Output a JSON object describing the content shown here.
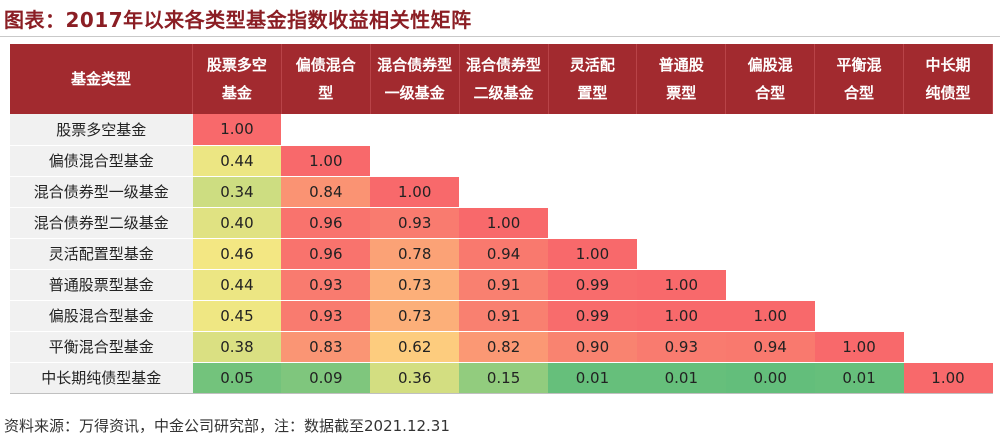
{
  "title": "图表：2017年以来各类型基金指数收益相关性矩阵",
  "corner_label": "基金类型",
  "columns": [
    [
      "股票多空",
      "基金"
    ],
    [
      "偏债混合",
      "型"
    ],
    [
      "混合债券型",
      "一级基金"
    ],
    [
      "混合债券型",
      "二级基金"
    ],
    [
      "灵活配",
      "置型"
    ],
    [
      "普通股",
      "票型"
    ],
    [
      "偏股混",
      "合型"
    ],
    [
      "平衡混",
      "合型"
    ],
    [
      "中长期",
      "纯债型"
    ]
  ],
  "rows": [
    {
      "label": "股票多空基金",
      "values": [
        "1.00"
      ]
    },
    {
      "label": "偏债混合型基金",
      "values": [
        "0.44",
        "1.00"
      ]
    },
    {
      "label": "混合债券型一级基金",
      "values": [
        "0.34",
        "0.84",
        "1.00"
      ]
    },
    {
      "label": "混合债券型二级基金",
      "values": [
        "0.40",
        "0.96",
        "0.93",
        "1.00"
      ]
    },
    {
      "label": "灵活配置型基金",
      "values": [
        "0.46",
        "0.96",
        "0.78",
        "0.94",
        "1.00"
      ]
    },
    {
      "label": "普通股票型基金",
      "values": [
        "0.44",
        "0.93",
        "0.73",
        "0.91",
        "0.99",
        "1.00"
      ]
    },
    {
      "label": "偏股混合型基金",
      "values": [
        "0.45",
        "0.93",
        "0.73",
        "0.91",
        "0.99",
        "1.00",
        "1.00"
      ]
    },
    {
      "label": "平衡混合型基金",
      "values": [
        "0.38",
        "0.83",
        "0.62",
        "0.82",
        "0.90",
        "0.93",
        "0.94",
        "1.00"
      ]
    },
    {
      "label": "中长期纯债型基金",
      "values": [
        "0.05",
        "0.09",
        "0.36",
        "0.15",
        "0.01",
        "0.01",
        "0.00",
        "0.01",
        "1.00"
      ]
    }
  ],
  "colors": {
    "header_bg": "#a22a2f",
    "title_color": "#8b1e24",
    "scale_low": "#63be7b",
    "scale_mid": "#ffeb84",
    "scale_high": "#f8696b"
  },
  "footnote": "资料来源：万得资讯，中金公司研究部，注：数据截至2021.12.31"
}
